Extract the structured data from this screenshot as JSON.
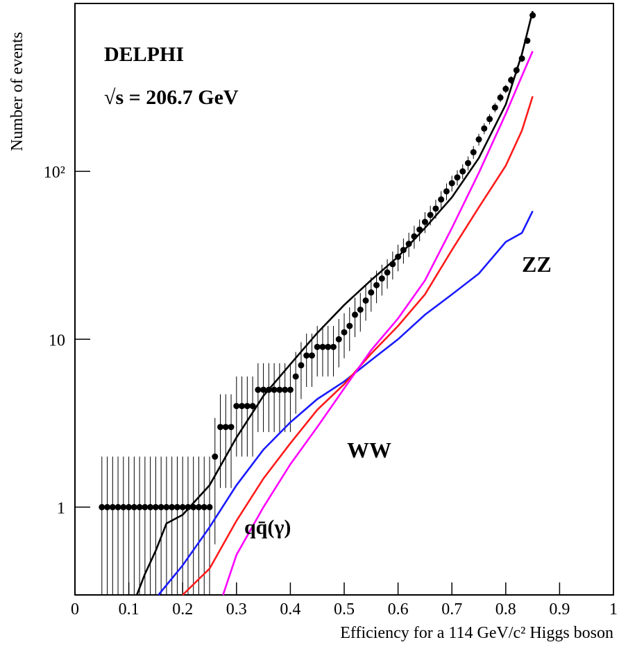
{
  "chart_data": {
    "type": "line",
    "xlabel": "Efficiency for a 114 GeV/c² Higgs boson",
    "ylabel": "Number of events",
    "xlim": [
      0,
      1
    ],
    "ylim": [
      0.3,
      1000
    ],
    "log_y": true,
    "xticks": [
      0,
      0.1,
      0.2,
      0.3,
      0.4,
      0.5,
      0.6,
      0.7,
      0.8,
      0.9,
      1
    ],
    "yticks": [
      1,
      10,
      {
        "value": 100,
        "label": "10²"
      }
    ],
    "annotations": [
      {
        "text": "DELPHI",
        "color": "#000000"
      },
      {
        "text": "√s = 206.7 GeV",
        "color": "#000000"
      },
      {
        "text": "ZZ",
        "color": "#1a1aff"
      },
      {
        "text": "WW",
        "color": "#ff00ff"
      },
      {
        "text": "qq̄(γ)",
        "color": "#ff1a1a"
      }
    ],
    "series": [
      {
        "color": "#000000",
        "markers": true,
        "x": [
          0.05,
          0.06,
          0.07,
          0.08,
          0.09,
          0.1,
          0.11,
          0.12,
          0.13,
          0.14,
          0.15,
          0.16,
          0.17,
          0.18,
          0.19,
          0.2,
          0.21,
          0.22,
          0.23,
          0.24,
          0.25,
          0.26,
          0.27,
          0.28,
          0.29,
          0.3,
          0.31,
          0.32,
          0.33,
          0.34,
          0.35,
          0.36,
          0.37,
          0.38,
          0.39,
          0.4,
          0.41,
          0.42,
          0.43,
          0.44,
          0.45,
          0.46,
          0.47,
          0.48,
          0.49,
          0.5,
          0.51,
          0.52,
          0.53,
          0.54,
          0.55,
          0.56,
          0.57,
          0.58,
          0.59,
          0.6,
          0.61,
          0.62,
          0.63,
          0.64,
          0.65,
          0.66,
          0.67,
          0.68,
          0.69,
          0.7,
          0.71,
          0.72,
          0.73,
          0.74,
          0.75,
          0.76,
          0.77,
          0.78,
          0.79,
          0.8,
          0.81,
          0.82,
          0.83,
          0.84,
          0.85
        ],
        "values": [
          1,
          1,
          1,
          1,
          1,
          1,
          1,
          1,
          1,
          1,
          1,
          1,
          1,
          1,
          1,
          1,
          1,
          1,
          1,
          1,
          1,
          2,
          3,
          3,
          3,
          4,
          4,
          4,
          4,
          5,
          5,
          5,
          5,
          5,
          5,
          5,
          6,
          7,
          8,
          8,
          9,
          9,
          9,
          9,
          10,
          11,
          12,
          14,
          15,
          17,
          19,
          21,
          23,
          25,
          28,
          31,
          34,
          37,
          41,
          45,
          50,
          55,
          60,
          68,
          76,
          85,
          92,
          100,
          112,
          130,
          155,
          180,
          205,
          240,
          275,
          310,
          350,
          400,
          470,
          600,
          850
        ],
        "errors": [
          1,
          1,
          1,
          1,
          1,
          1,
          1,
          1,
          1,
          1,
          1,
          1,
          1,
          1,
          1,
          1,
          1,
          1,
          1,
          1,
          1,
          1.4,
          1.7,
          1.7,
          1.7,
          2,
          2,
          2,
          2,
          2.2,
          2.2,
          2.2,
          2.2,
          2.2,
          2.2,
          2.2,
          2.4,
          2.6,
          2.8,
          2.8,
          3,
          3,
          3,
          3,
          3.2,
          3.3,
          3.5,
          3.7,
          3.9,
          4.1,
          4.4,
          4.6,
          4.8,
          5,
          5.3,
          5.6,
          5.8,
          6.1,
          6.4,
          6.7,
          7.1,
          7.4,
          7.7,
          8.2,
          8.7,
          9.2,
          9.6,
          10,
          10.6,
          11.4,
          12.4,
          13.4,
          14.3,
          15.5,
          16.6,
          17.6,
          18.7,
          20,
          21.7,
          24.5,
          29.2
        ]
      },
      {
        "color": "#000000",
        "x": [
          0.115,
          0.13,
          0.15,
          0.17,
          0.2,
          0.25,
          0.3,
          0.35,
          0.4,
          0.45,
          0.5,
          0.55,
          0.6,
          0.65,
          0.7,
          0.75,
          0.8,
          0.83,
          0.85
        ],
        "values": [
          0.3,
          0.4,
          0.55,
          0.8,
          0.9,
          1.35,
          2.6,
          4.6,
          7.1,
          10.9,
          16,
          22.5,
          31,
          46,
          70,
          120,
          250,
          500,
          900
        ]
      },
      {
        "name": "ZZ",
        "color": "#1a1aff",
        "x": [
          0.155,
          0.2,
          0.25,
          0.3,
          0.35,
          0.4,
          0.45,
          0.5,
          0.55,
          0.6,
          0.65,
          0.7,
          0.75,
          0.8,
          0.83,
          0.85
        ],
        "values": [
          0.3,
          0.45,
          0.76,
          1.35,
          2.2,
          3.2,
          4.4,
          5.6,
          7.5,
          10,
          14,
          18.5,
          24.6,
          38,
          43,
          58
        ]
      },
      {
        "name": "qq̄(γ)",
        "color": "#ff1a1a",
        "x": [
          0.2,
          0.25,
          0.3,
          0.35,
          0.4,
          0.45,
          0.5,
          0.55,
          0.6,
          0.65,
          0.7,
          0.75,
          0.8,
          0.83,
          0.85
        ],
        "values": [
          0.3,
          0.43,
          0.83,
          1.48,
          2.4,
          3.8,
          5.4,
          8.2,
          12,
          18.5,
          34,
          61,
          108,
          175,
          280
        ]
      },
      {
        "name": "WW",
        "color": "#ff00ff",
        "x": [
          0.275,
          0.3,
          0.35,
          0.4,
          0.45,
          0.5,
          0.55,
          0.6,
          0.65,
          0.7,
          0.75,
          0.8,
          0.83,
          0.85
        ],
        "values": [
          0.3,
          0.52,
          1,
          1.8,
          3,
          5.1,
          8.6,
          13.3,
          22.4,
          46,
          98,
          220,
          370,
          520
        ]
      }
    ]
  }
}
